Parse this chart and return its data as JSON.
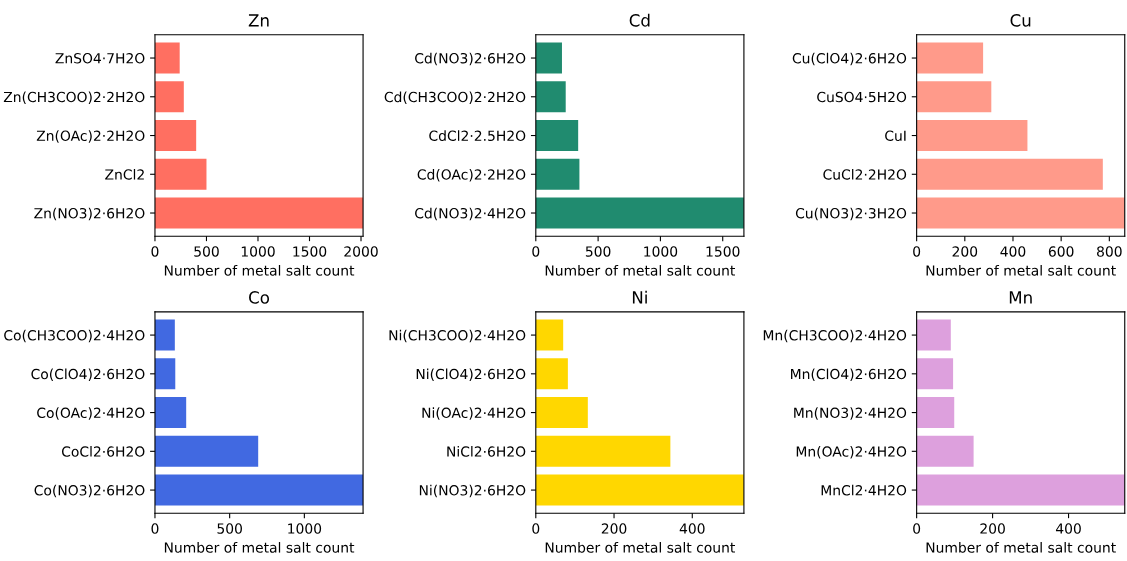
{
  "chart_data": [
    {
      "type": "bar",
      "orientation": "horizontal",
      "title": "Zn",
      "xlabel": "Number of metal salt count",
      "categories": [
        "ZnSO4·7H2O",
        "Zn(CH3COO)2·2H2O",
        "Zn(OAc)2·2H2O",
        "ZnCl2",
        "Zn(NO3)2·6H2O"
      ],
      "values": [
        240,
        280,
        400,
        500,
        2020
      ],
      "color": "#ff6f61",
      "xlim": [
        0,
        2020
      ],
      "xticks": [
        0,
        500,
        1000,
        1500,
        2000
      ]
    },
    {
      "type": "bar",
      "orientation": "horizontal",
      "title": "Cd",
      "xlabel": "Number of metal salt count",
      "categories": [
        "Cd(NO3)2·6H2O",
        "Cd(CH3COO)2·2H2O",
        "CdCl2·2.5H2O",
        "Cd(OAc)2·2H2O",
        "Cd(NO3)2·4H2O"
      ],
      "values": [
        210,
        240,
        340,
        350,
        1670
      ],
      "color": "#208b6f",
      "xlim": [
        0,
        1670
      ],
      "xticks": [
        0,
        500,
        1000,
        1500
      ]
    },
    {
      "type": "bar",
      "orientation": "horizontal",
      "title": "Cu",
      "xlabel": "Number of metal salt count",
      "categories": [
        "Cu(ClO4)2·6H2O",
        "CuSO4·5H2O",
        "CuI",
        "CuCl2·2H2O",
        "Cu(NO3)2·3H2O"
      ],
      "values": [
        276,
        310,
        460,
        773,
        864
      ],
      "color": "#ff9a8a",
      "xlim": [
        0,
        864
      ],
      "xticks": [
        0,
        200,
        400,
        600,
        800
      ]
    },
    {
      "type": "bar",
      "orientation": "horizontal",
      "title": "Co",
      "xlabel": "Number of metal salt count",
      "categories": [
        "Co(CH3COO)2·4H2O",
        "Co(ClO4)2·6H2O",
        "Co(OAc)2·4H2O",
        "CoCl2·6H2O",
        "Co(NO3)2·6H2O"
      ],
      "values": [
        133,
        136,
        209,
        691,
        1393
      ],
      "color": "#4169e1",
      "xlim": [
        0,
        1393
      ],
      "xticks": [
        0,
        500,
        1000
      ]
    },
    {
      "type": "bar",
      "orientation": "horizontal",
      "title": "Ni",
      "xlabel": "Number of metal salt count",
      "categories": [
        "Ni(CH3COO)2·4H2O",
        "Ni(ClO4)2·6H2O",
        "Ni(OAc)2·4H2O",
        "NiCl2·6H2O",
        "Ni(NO3)2·6H2O"
      ],
      "values": [
        70,
        82,
        133,
        344,
        532
      ],
      "color": "#ffd700",
      "xlim": [
        0,
        532
      ],
      "xticks": [
        0,
        200,
        400
      ]
    },
    {
      "type": "bar",
      "orientation": "horizontal",
      "title": "Mn",
      "xlabel": "Number of metal salt count",
      "categories": [
        "Mn(CH3COO)2·4H2O",
        "Mn(ClO4)2·6H2O",
        "Mn(NO3)2·4H2O",
        "Mn(OAc)2·4H2O",
        "MnCl2·4H2O"
      ],
      "values": [
        90,
        96,
        99,
        150,
        548
      ],
      "color": "#dda0dd",
      "xlim": [
        0,
        548
      ],
      "xticks": [
        0,
        200,
        400
      ]
    }
  ]
}
